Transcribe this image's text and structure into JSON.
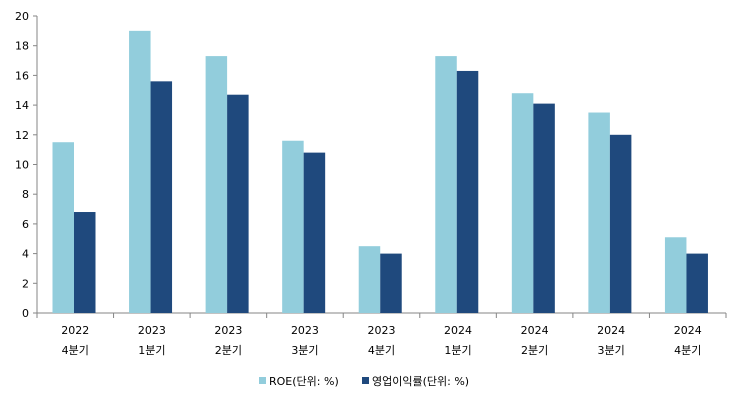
{
  "chart_data": {
    "type": "bar",
    "categories": [
      [
        "2022",
        "4분기"
      ],
      [
        "2023",
        "1분기"
      ],
      [
        "2023",
        "2분기"
      ],
      [
        "2023",
        "3분기"
      ],
      [
        "2023",
        "4분기"
      ],
      [
        "2024",
        "1분기"
      ],
      [
        "2024",
        "2분기"
      ],
      [
        "2024",
        "3분기"
      ],
      [
        "2024",
        "4분기"
      ]
    ],
    "series": [
      {
        "name": "ROE(단위: %)",
        "color": "#92CDDC",
        "values": [
          11.5,
          19.0,
          17.3,
          11.6,
          4.5,
          17.3,
          14.8,
          13.5,
          5.1
        ]
      },
      {
        "name": "영업이익률(단위: %)",
        "color": "#1F497D",
        "values": [
          6.8,
          15.6,
          14.7,
          10.8,
          4.0,
          16.3,
          14.1,
          12.0,
          4.0
        ]
      }
    ],
    "ylim": [
      0,
      20
    ],
    "yticks": [
      0,
      2,
      4,
      6,
      8,
      10,
      12,
      14,
      16,
      18,
      20
    ],
    "title": "",
    "xlabel": "",
    "ylabel": "",
    "grid": false,
    "legend_position": "bottom"
  }
}
